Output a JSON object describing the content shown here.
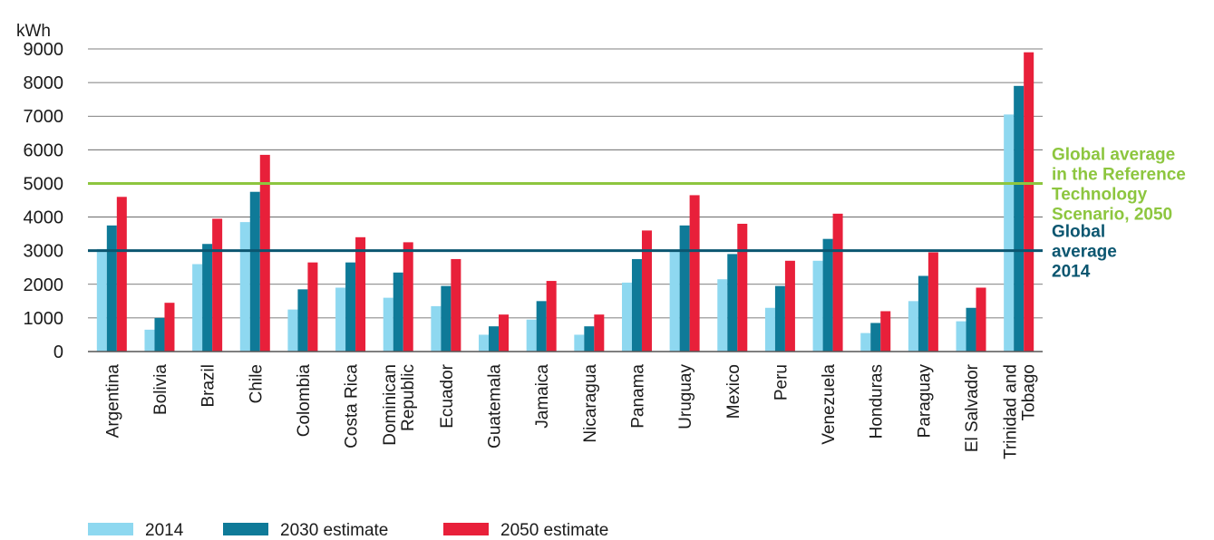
{
  "chart_data": {
    "type": "bar",
    "ylabel": "kWh",
    "ylim": [
      0,
      9000
    ],
    "yticks": [
      0,
      1000,
      2000,
      3000,
      4000,
      5000,
      6000,
      7000,
      8000,
      9000
    ],
    "grid": "horizontal",
    "categories": [
      [
        "Argentina"
      ],
      [
        "Bolivia"
      ],
      [
        "Brazil"
      ],
      [
        "Chile"
      ],
      [
        "Colombia"
      ],
      [
        "Costa Rica"
      ],
      [
        "Dominican",
        "Republic"
      ],
      [
        "Ecuador"
      ],
      [
        "Guatemala"
      ],
      [
        "Jamaica"
      ],
      [
        "Nicaragua"
      ],
      [
        "Panama"
      ],
      [
        "Uruguay"
      ],
      [
        "Mexico"
      ],
      [
        "Peru"
      ],
      [
        "Venezuela"
      ],
      [
        "Honduras"
      ],
      [
        "Paraguay"
      ],
      [
        "El Salvador"
      ],
      [
        "Trinidad and",
        "Tobago"
      ]
    ],
    "series": [
      {
        "name": "2014",
        "color": "#8ed8f0",
        "values": [
          3050,
          650,
          2600,
          3850,
          1250,
          1900,
          1600,
          1350,
          500,
          950,
          500,
          2050,
          3000,
          2150,
          1300,
          2700,
          550,
          1500,
          900,
          7050
        ]
      },
      {
        "name": "2030 estimate",
        "color": "#0f7a98",
        "values": [
          3750,
          1000,
          3200,
          4750,
          1850,
          2650,
          2350,
          1950,
          750,
          1500,
          750,
          2750,
          3750,
          2900,
          1950,
          3350,
          850,
          2250,
          1300,
          7900
        ]
      },
      {
        "name": "2050 estimate",
        "color": "#e8203a",
        "values": [
          4600,
          1450,
          3950,
          5850,
          2650,
          3400,
          3250,
          2750,
          1100,
          2100,
          1100,
          3600,
          4650,
          3800,
          2700,
          4100,
          1200,
          2950,
          1900,
          8900
        ]
      }
    ],
    "reference_lines": [
      {
        "value": 5000,
        "color": "#8dc63f",
        "label": [
          "Global average",
          "in the Reference",
          "Technology",
          "Scenario, 2050"
        ]
      },
      {
        "value": 3000,
        "color": "#0b5670",
        "label": [
          "Global",
          "average",
          "2014"
        ]
      }
    ],
    "legend_position": "bottom-left"
  }
}
